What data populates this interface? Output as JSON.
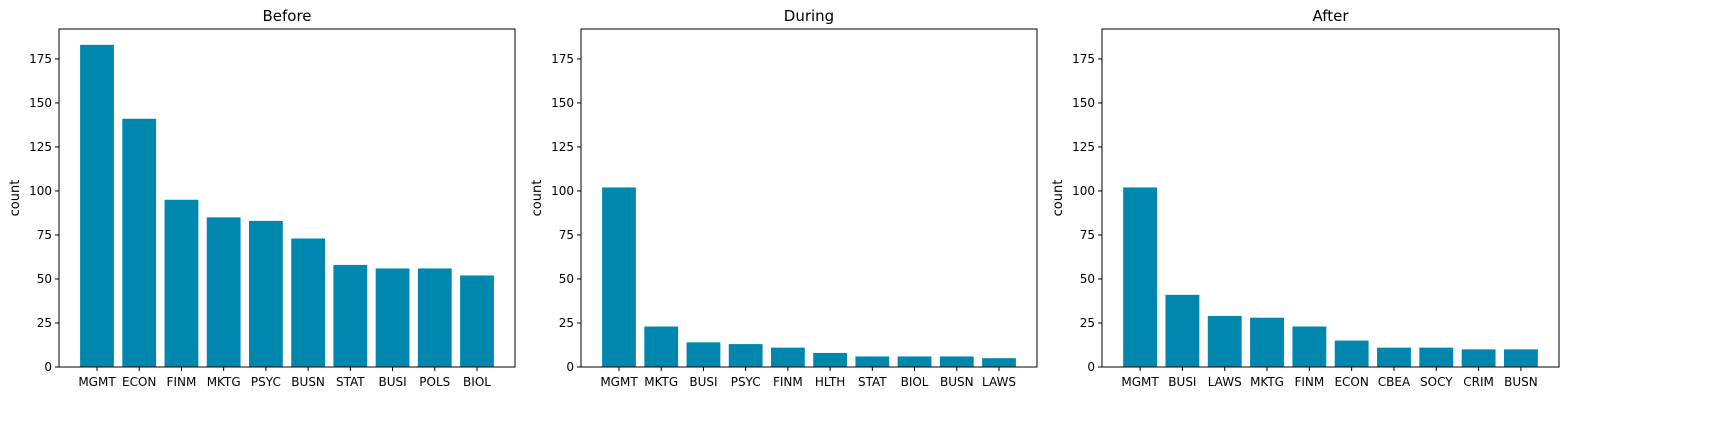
{
  "chart_data": [
    {
      "type": "bar",
      "title": "Before",
      "xlabel": "",
      "ylabel": "count",
      "ylim": [
        0,
        192
      ],
      "yticks": [
        0,
        25,
        50,
        75,
        100,
        125,
        150,
        175
      ],
      "color": "#0087ae",
      "categories": [
        "MGMT",
        "ECON",
        "FINM",
        "MKTG",
        "PSYC",
        "BUSN",
        "STAT",
        "BUSI",
        "POLS",
        "BIOL"
      ],
      "values": [
        183,
        141,
        95,
        85,
        83,
        73,
        58,
        56,
        56,
        52
      ]
    },
    {
      "type": "bar",
      "title": "During",
      "xlabel": "",
      "ylabel": "count",
      "ylim": [
        0,
        192
      ],
      "yticks": [
        0,
        25,
        50,
        75,
        100,
        125,
        150,
        175
      ],
      "color": "#0087ae",
      "categories": [
        "MGMT",
        "MKTG",
        "BUSI",
        "PSYC",
        "FINM",
        "HLTH",
        "STAT",
        "BIOL",
        "BUSN",
        "LAWS"
      ],
      "values": [
        102,
        23,
        14,
        13,
        11,
        8,
        6,
        6,
        6,
        5
      ]
    },
    {
      "type": "bar",
      "title": "After",
      "xlabel": "",
      "ylabel": "count",
      "ylim": [
        0,
        192
      ],
      "yticks": [
        0,
        25,
        50,
        75,
        100,
        125,
        150,
        175
      ],
      "color": "#0087ae",
      "categories": [
        "MGMT",
        "BUSI",
        "LAWS",
        "MKTG",
        "FINM",
        "ECON",
        "CBEA",
        "SOCY",
        "CRIM",
        "BUSN"
      ],
      "values": [
        102,
        41,
        29,
        28,
        23,
        15,
        11,
        11,
        10,
        10
      ]
    }
  ]
}
